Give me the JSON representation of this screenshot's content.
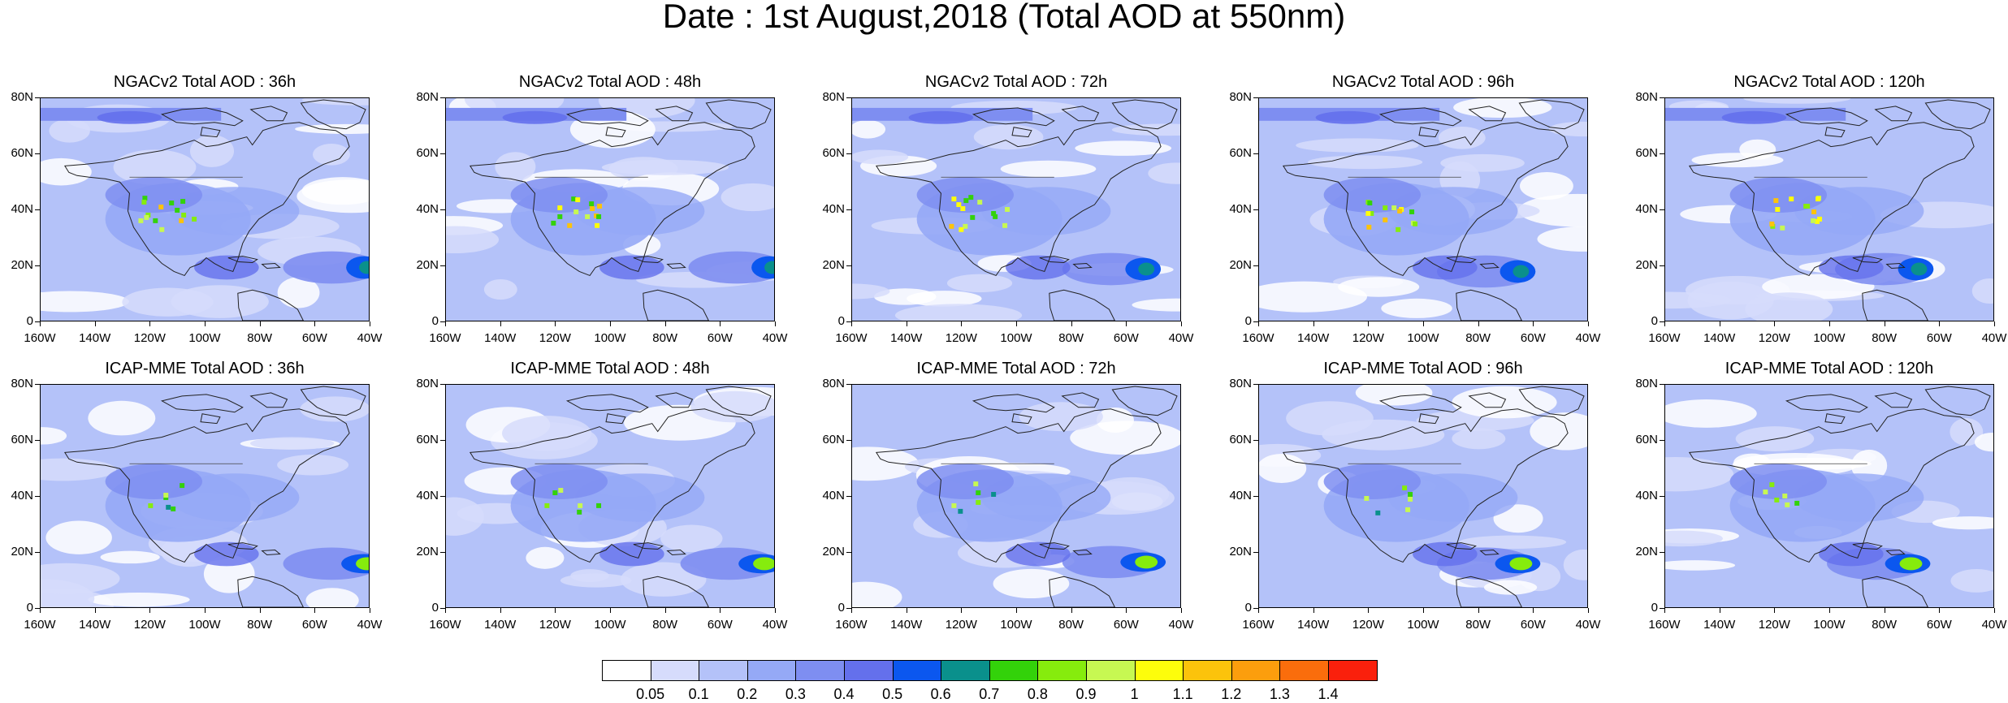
{
  "title": "Date : 1st August,2018 (Total AOD at 550nm)",
  "panels": [
    {
      "label": "NGACv2 Total AOD : 36h",
      "model": "NGACv2",
      "lead": "36h"
    },
    {
      "label": "NGACv2 Total AOD : 48h",
      "model": "NGACv2",
      "lead": "48h"
    },
    {
      "label": "NGACv2 Total AOD : 72h",
      "model": "NGACv2",
      "lead": "72h"
    },
    {
      "label": "NGACv2 Total AOD : 96h",
      "model": "NGACv2",
      "lead": "96h"
    },
    {
      "label": "NGACv2 Total AOD : 120h",
      "model": "NGACv2",
      "lead": "120h"
    },
    {
      "label": "ICAP-MME Total AOD : 36h",
      "model": "ICAP-MME",
      "lead": "36h"
    },
    {
      "label": "ICAP-MME Total AOD : 48h",
      "model": "ICAP-MME",
      "lead": "48h"
    },
    {
      "label": "ICAP-MME Total AOD : 72h",
      "model": "ICAP-MME",
      "lead": "72h"
    },
    {
      "label": "ICAP-MME Total AOD : 96h",
      "model": "ICAP-MME",
      "lead": "96h"
    },
    {
      "label": "ICAP-MME Total AOD : 120h",
      "model": "ICAP-MME",
      "lead": "120h"
    }
  ],
  "y_ticks": [
    "80N",
    "60N",
    "40N",
    "20N",
    "0"
  ],
  "x_ticks": [
    "160W",
    "140W",
    "120W",
    "100W",
    "80W",
    "60W",
    "40W"
  ],
  "colorbar": {
    "colors": [
      "#ffffff",
      "#d6dcfc",
      "#b4c2f9",
      "#95a9f6",
      "#7e8ef1",
      "#6470ec",
      "#0b57ef",
      "#0a908c",
      "#33d20a",
      "#86ec0d",
      "#c7f852",
      "#fdfd0b",
      "#fcc30b",
      "#fc9e0d",
      "#fa6d0c",
      "#fa200c"
    ],
    "labels": [
      "0.05",
      "0.1",
      "0.2",
      "0.3",
      "0.4",
      "0.5",
      "0.6",
      "0.7",
      "0.8",
      "0.9",
      "1",
      "1.1",
      "1.2",
      "1.3",
      "1.4"
    ]
  }
}
